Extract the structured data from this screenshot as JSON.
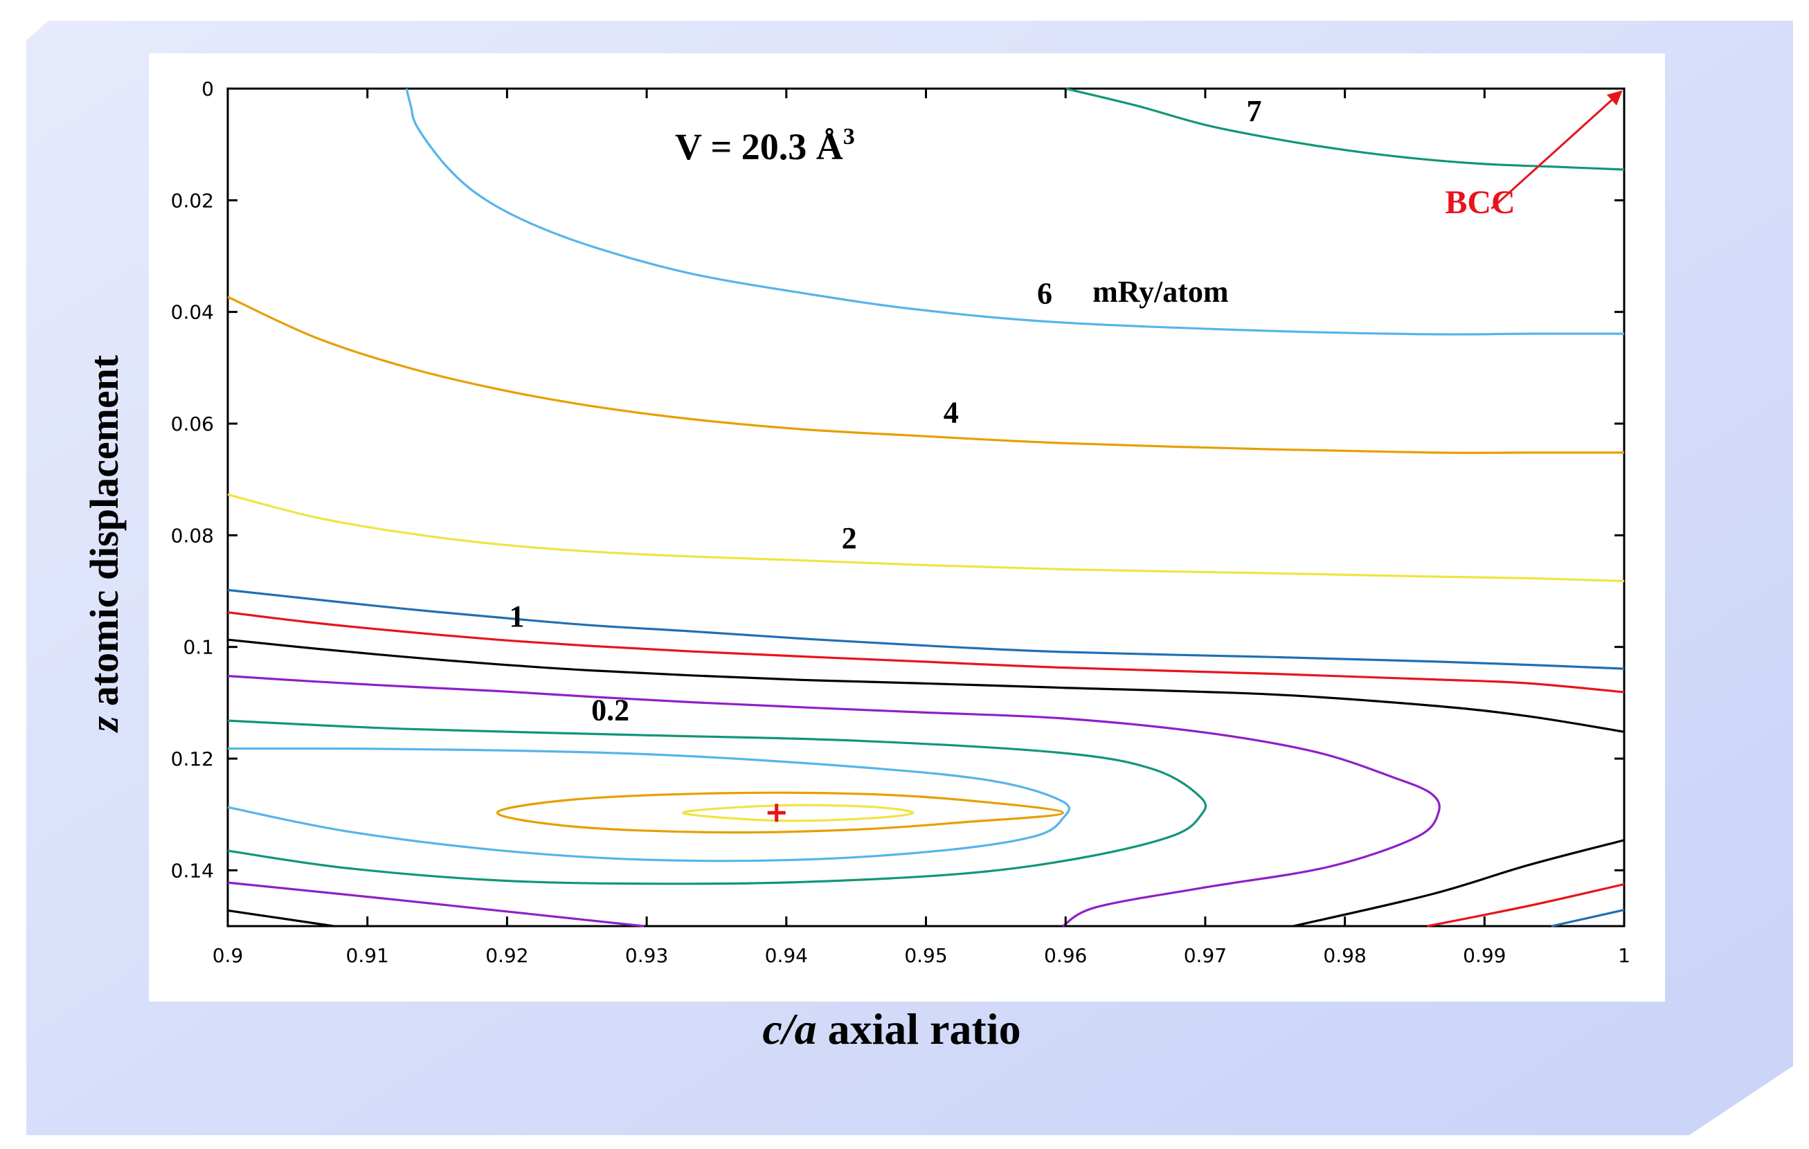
{
  "chart_data": {
    "type": "contour",
    "title": "V = 20.3 Å",
    "title_superscript": "3",
    "xlabel_italic": "c/a",
    "xlabel_rest": " axial ratio",
    "ylabel_italic": "z",
    "ylabel_rest": " atomic displacement",
    "xlim": [
      0.9,
      1.0
    ],
    "ylim": [
      0.0,
      0.15
    ],
    "y_inverted": true,
    "x_ticks": [
      "0.9",
      "0.91",
      "0.92",
      "0.93",
      "0.94",
      "0.95",
      "0.96",
      "0.97",
      "0.98",
      "0.99",
      "1"
    ],
    "y_ticks": [
      "0",
      "0.02",
      "0.04",
      "0.06",
      "0.08",
      "0.1",
      "0.12",
      "0.14"
    ],
    "minimum_marker": {
      "x": 0.9393,
      "y": 0.1297,
      "color": "#e8141c"
    },
    "bcc_annotation": {
      "text": "BCC",
      "color": "#e8141c",
      "from": [
        0.9905,
        0.0215
      ],
      "to": [
        0.9998,
        0.0005
      ]
    },
    "contour_labels": [
      {
        "text": "7",
        "x": 0.9735,
        "y": 0.0058
      },
      {
        "text": "6",
        "x": 0.9585,
        "y": 0.0385
      },
      {
        "text": "mRy/atom",
        "x": 0.9668,
        "y": 0.0382
      },
      {
        "text": "4",
        "x": 0.9518,
        "y": 0.0598
      },
      {
        "text": "2",
        "x": 0.9445,
        "y": 0.0823
      },
      {
        "text": "1",
        "x": 0.9207,
        "y": 0.0963
      },
      {
        "text": "0.2",
        "x": 0.9274,
        "y": 0.1131
      }
    ],
    "series": [
      {
        "name": "7",
        "color": "#12957a",
        "points": [
          [
            0.96,
            0.0
          ],
          [
            0.965,
            0.003
          ],
          [
            0.97,
            0.0065
          ],
          [
            0.975,
            0.009
          ],
          [
            0.98,
            0.011
          ],
          [
            0.985,
            0.0125
          ],
          [
            0.99,
            0.0135
          ],
          [
            0.995,
            0.014
          ],
          [
            1.0,
            0.0145
          ]
        ]
      },
      {
        "name": "6",
        "color": "#56b4e9",
        "points": [
          [
            0.9128,
            0.0
          ],
          [
            0.9131,
            0.003
          ],
          [
            0.9136,
            0.007
          ],
          [
            0.9158,
            0.0143
          ],
          [
            0.9184,
            0.0198
          ],
          [
            0.9222,
            0.0247
          ],
          [
            0.927,
            0.029
          ],
          [
            0.9333,
            0.0332
          ],
          [
            0.9411,
            0.0366
          ],
          [
            0.9495,
            0.0396
          ],
          [
            0.9598,
            0.0419
          ],
          [
            0.9747,
            0.0434
          ],
          [
            0.9862,
            0.044
          ],
          [
            0.9931,
            0.0439
          ],
          [
            1.0,
            0.0439
          ]
        ]
      },
      {
        "name": "4",
        "color": "#e69f00",
        "points": [
          [
            0.9,
            0.0373
          ],
          [
            0.9063,
            0.0446
          ],
          [
            0.9128,
            0.0499
          ],
          [
            0.9193,
            0.0538
          ],
          [
            0.9259,
            0.0568
          ],
          [
            0.9332,
            0.0592
          ],
          [
            0.9411,
            0.061
          ],
          [
            0.9495,
            0.0622
          ],
          [
            0.9598,
            0.0635
          ],
          [
            0.9747,
            0.0646
          ],
          [
            0.9862,
            0.0652
          ],
          [
            0.9931,
            0.0652
          ],
          [
            1.0,
            0.0652
          ]
        ]
      },
      {
        "name": "2",
        "color": "#f0e442",
        "points": [
          [
            0.9,
            0.0727
          ],
          [
            0.9063,
            0.0768
          ],
          [
            0.9128,
            0.0796
          ],
          [
            0.9193,
            0.0816
          ],
          [
            0.9259,
            0.0829
          ],
          [
            0.9332,
            0.0838
          ],
          [
            0.9411,
            0.0845
          ],
          [
            0.9495,
            0.0853
          ],
          [
            0.9598,
            0.0861
          ],
          [
            0.9747,
            0.0868
          ],
          [
            0.9862,
            0.0874
          ],
          [
            0.9931,
            0.0877
          ],
          [
            1.0,
            0.0882
          ]
        ]
      },
      {
        "name": "1",
        "color": "#1f6fb2",
        "points": [
          [
            0.9,
            0.0898
          ],
          [
            0.9063,
            0.0915
          ],
          [
            0.9128,
            0.0932
          ],
          [
            0.9193,
            0.0947
          ],
          [
            0.9259,
            0.0961
          ],
          [
            0.9332,
            0.0972
          ],
          [
            0.9411,
            0.0985
          ],
          [
            0.9495,
            0.0997
          ],
          [
            0.9598,
            0.1009
          ],
          [
            0.9747,
            0.1018
          ],
          [
            0.9862,
            0.1026
          ],
          [
            0.9931,
            0.1032
          ],
          [
            1.0,
            0.1039
          ]
        ]
      },
      {
        "name": "0.6",
        "color": "#e8141c",
        "points": [
          [
            0.9,
            0.0938
          ],
          [
            0.9063,
            0.0957
          ],
          [
            0.9128,
            0.0973
          ],
          [
            0.9193,
            0.0987
          ],
          [
            0.9259,
            0.0998
          ],
          [
            0.9332,
            0.1008
          ],
          [
            0.9411,
            0.1017
          ],
          [
            0.9495,
            0.1026
          ],
          [
            0.9598,
            0.1037
          ],
          [
            0.9747,
            0.1048
          ],
          [
            0.9862,
            0.1058
          ],
          [
            0.9931,
            0.1065
          ],
          [
            1.0,
            0.1081
          ]
        ]
      },
      {
        "name": "0.4",
        "color": "#000000",
        "points": [
          [
            0.9,
            0.0987
          ],
          [
            0.9063,
            0.1003
          ],
          [
            0.9128,
            0.1018
          ],
          [
            0.9193,
            0.1031
          ],
          [
            0.9259,
            0.1042
          ],
          [
            0.9332,
            0.1051
          ],
          [
            0.9411,
            0.1059
          ],
          [
            0.9495,
            0.1065
          ],
          [
            0.9598,
            0.1073
          ],
          [
            0.9747,
            0.1085
          ],
          [
            0.9862,
            0.1105
          ],
          [
            0.9931,
            0.1124
          ],
          [
            1.0,
            0.1152
          ]
        ]
      },
      {
        "name": "0.2",
        "color": "#8f1fc8",
        "points": [
          [
            0.9,
            0.1052
          ],
          [
            0.9063,
            0.1062
          ],
          [
            0.9128,
            0.1071
          ],
          [
            0.9193,
            0.1079
          ],
          [
            0.9259,
            0.1089
          ],
          [
            0.9332,
            0.1099
          ],
          [
            0.9411,
            0.1108
          ],
          [
            0.9495,
            0.1117
          ],
          [
            0.9598,
            0.1128
          ],
          [
            0.9699,
            0.1153
          ],
          [
            0.9779,
            0.1188
          ],
          [
            0.9834,
            0.1233
          ],
          [
            0.9862,
            0.1263
          ],
          [
            0.9867,
            0.1297
          ],
          [
            0.9851,
            0.1341
          ],
          [
            0.9788,
            0.1394
          ],
          [
            0.9699,
            0.1431
          ],
          [
            0.9622,
            0.1466
          ],
          [
            0.9598,
            0.15
          ]
        ]
      },
      {
        "name": "0.2-lower",
        "color": "#8f1fc8",
        "points": [
          [
            0.9,
            0.1422
          ],
          [
            0.9129,
            0.1455
          ],
          [
            0.9298,
            0.15
          ]
        ]
      },
      {
        "name": "0.4-lower",
        "color": "#000000",
        "points": [
          [
            0.9,
            0.1472
          ],
          [
            0.9076,
            0.15
          ]
        ]
      },
      {
        "name": "0.4-right",
        "color": "#000000",
        "points": [
          [
            0.9763,
            0.15
          ],
          [
            0.9862,
            0.1443
          ],
          [
            0.9931,
            0.1391
          ],
          [
            1.0,
            0.1346
          ]
        ]
      },
      {
        "name": "0.6-right",
        "color": "#e8141c",
        "points": [
          [
            0.9859,
            0.15
          ],
          [
            0.9931,
            0.1464
          ],
          [
            1.0,
            0.1425
          ]
        ]
      },
      {
        "name": "1-right",
        "color": "#1f6fb2",
        "points": [
          [
            0.9948,
            0.15
          ],
          [
            1.0,
            0.1471
          ]
        ]
      },
      {
        "name": "0.1",
        "color": "#12957a",
        "closed": false,
        "points": [
          [
            0.9,
            0.1132
          ],
          [
            0.9129,
            0.1147
          ],
          [
            0.9298,
            0.1158
          ],
          [
            0.9451,
            0.1168
          ],
          [
            0.9598,
            0.119
          ],
          [
            0.9664,
            0.122
          ],
          [
            0.9697,
            0.127
          ],
          [
            0.9697,
            0.1301
          ],
          [
            0.9677,
            0.1338
          ],
          [
            0.9615,
            0.1376
          ],
          [
            0.9531,
            0.1405
          ],
          [
            0.9411,
            0.1421
          ],
          [
            0.9298,
            0.1424
          ],
          [
            0.9193,
            0.1418
          ],
          [
            0.9085,
            0.1396
          ],
          [
            0.9,
            0.1365
          ]
        ]
      },
      {
        "name": "0.05",
        "color": "#56b4e9",
        "closed": false,
        "points": [
          [
            0.9,
            0.1182
          ],
          [
            0.9129,
            0.1183
          ],
          [
            0.9298,
            0.1192
          ],
          [
            0.9451,
            0.1215
          ],
          [
            0.9548,
            0.124
          ],
          [
            0.9598,
            0.1277
          ],
          [
            0.9598,
            0.1307
          ],
          [
            0.9578,
            0.1339
          ],
          [
            0.9514,
            0.1364
          ],
          [
            0.9411,
            0.1381
          ],
          [
            0.9298,
            0.1381
          ],
          [
            0.9193,
            0.1364
          ],
          [
            0.9085,
            0.133
          ],
          [
            0.9,
            0.1287
          ]
        ]
      },
      {
        "name": "0.02",
        "color": "#e69f00",
        "closed": true,
        "points": [
          [
            0.9193,
            0.1297
          ],
          [
            0.9249,
            0.1273
          ],
          [
            0.9351,
            0.1262
          ],
          [
            0.9451,
            0.1263
          ],
          [
            0.9526,
            0.1274
          ],
          [
            0.9598,
            0.1297
          ],
          [
            0.9526,
            0.1314
          ],
          [
            0.9451,
            0.1327
          ],
          [
            0.9351,
            0.1332
          ],
          [
            0.9249,
            0.1322
          ]
        ]
      },
      {
        "name": "0.005",
        "color": "#f0e442",
        "closed": true,
        "points": [
          [
            0.9326,
            0.1297
          ],
          [
            0.9392,
            0.1284
          ],
          [
            0.9458,
            0.1286
          ],
          [
            0.9491,
            0.1297
          ],
          [
            0.9458,
            0.1307
          ],
          [
            0.9392,
            0.1311
          ]
        ]
      }
    ]
  }
}
